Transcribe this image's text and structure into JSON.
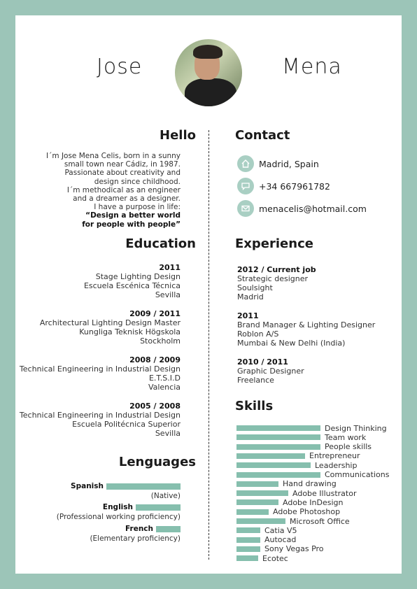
{
  "header": {
    "first_name": "Jose",
    "last_name": "Mena"
  },
  "hello": {
    "title": "Hello",
    "lines": [
      "I´m Jose Mena Celis, born in a sunny",
      "small town near Cádiz, in 1987.",
      "Passionate about creativity and",
      "design since childhood.",
      "I´m methodical as an engineer",
      "and a dreamer as a designer.",
      "I have a purpose in life:"
    ],
    "quote_lines": [
      "“Design a better world",
      "for people with people”"
    ]
  },
  "contact": {
    "title": "Contact",
    "location": "Madrid, Spain",
    "phone": "+34 667961782",
    "email": "menacelis@hotmail.com"
  },
  "education": {
    "title": "Education",
    "items": [
      {
        "year": "2011",
        "lines": [
          "Stage Lighting Design",
          "Escuela Escénica Técnica",
          "Sevilla"
        ]
      },
      {
        "year": "2009 / 2011",
        "lines": [
          "Architectural Lighting Design Master",
          "Kungliga Teknisk Högskola",
          "Stockholm"
        ]
      },
      {
        "year": "2008 / 2009",
        "lines": [
          "Technical Engineering in Industrial Design",
          "E.T.S.I.D",
          "Valencia"
        ]
      },
      {
        "year": "2005 / 2008",
        "lines": [
          "Technical Engineering in Industrial Design",
          "Escuela Politécnica Superior",
          "Sevilla"
        ]
      }
    ]
  },
  "experience": {
    "title": "Experience",
    "items": [
      {
        "year": "2012 / Current job",
        "lines": [
          "Strategic designer",
          "Soulsight",
          "Madrid"
        ]
      },
      {
        "year": "2011",
        "lines": [
          "Brand Manager & Lighting Designer",
          "Roblon A/S",
          "Mumbai & New Delhi (India)"
        ]
      },
      {
        "year": "2010 / 2011",
        "lines": [
          "Graphic Designer",
          "Freelance"
        ]
      }
    ]
  },
  "languages": {
    "title": "Lenguages",
    "items": [
      {
        "name": "Spanish",
        "level": "(Native)",
        "proficiency": 1.0
      },
      {
        "name": "English",
        "level": "(Professional working proficiency)",
        "proficiency": 0.6
      },
      {
        "name": "French",
        "level": "(Elementary proficiency)",
        "proficiency": 0.33
      }
    ]
  },
  "skills": {
    "title": "Skills",
    "items": [
      {
        "name": "Design Thinking",
        "level": 1.0
      },
      {
        "name": "Team work",
        "level": 1.0
      },
      {
        "name": "People skills",
        "level": 1.0
      },
      {
        "name": "Entrepreneur",
        "level": 0.82
      },
      {
        "name": "Leadership",
        "level": 0.88
      },
      {
        "name": "Communications",
        "level": 1.0
      },
      {
        "name": "Hand drawing",
        "level": 0.5
      },
      {
        "name": "Adobe Illustrator",
        "level": 0.62
      },
      {
        "name": "Adobe InDesign",
        "level": 0.5
      },
      {
        "name": "Adobe Photoshop",
        "level": 0.38
      },
      {
        "name": "Microsoft Office",
        "level": 0.58
      },
      {
        "name": "Catia V5",
        "level": 0.28
      },
      {
        "name": "Autocad",
        "level": 0.28
      },
      {
        "name": "Sony Vegas Pro",
        "level": 0.28
      },
      {
        "name": "Ecotec",
        "level": 0.26
      }
    ]
  },
  "colors": {
    "background": "#9cc5b8",
    "accent": "#86bfae",
    "icon_circle": "#a9cfc3"
  },
  "icons": {
    "location": "home-icon",
    "phone": "speech-bubble-icon",
    "email": "envelope-icon"
  }
}
